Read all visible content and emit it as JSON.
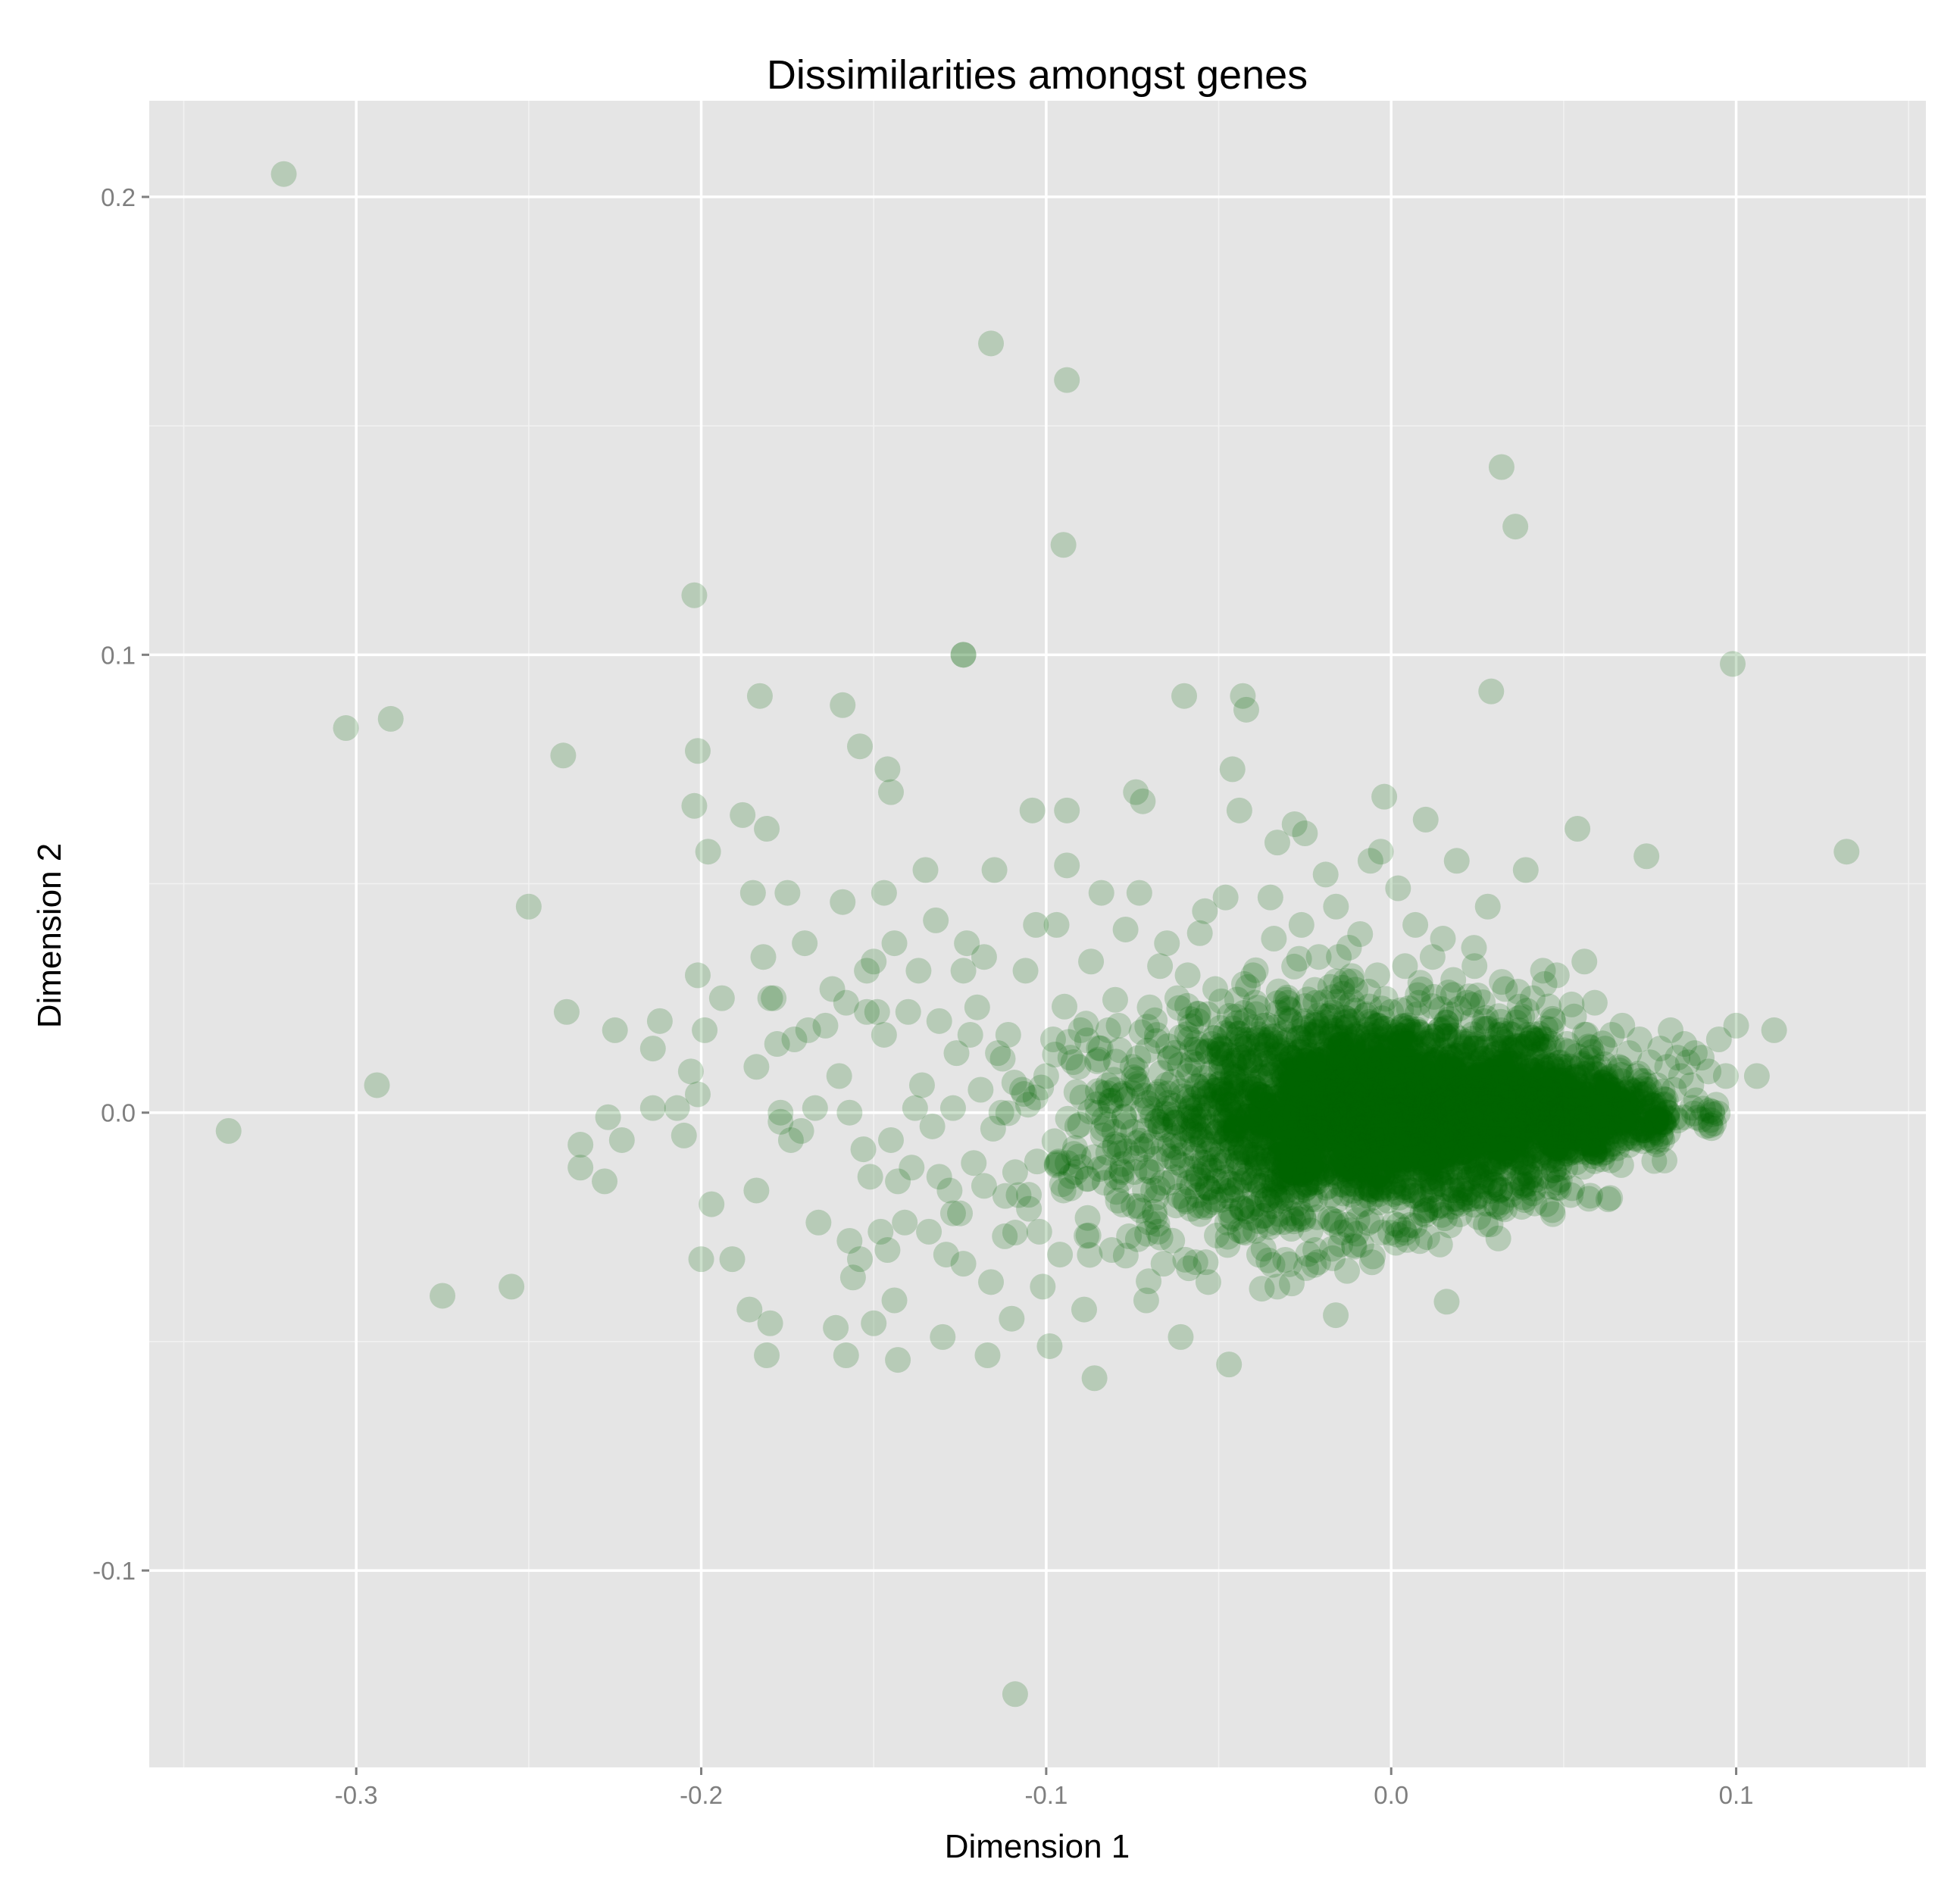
{
  "chart_data": {
    "type": "scatter",
    "title": "Dissimilarities amongst genes",
    "xlabel": "Dimension 1",
    "ylabel": "Dimension 2",
    "xlim": [
      -0.36,
      0.155
    ],
    "ylim": [
      -0.143,
      0.221
    ],
    "x_ticks": [
      -0.3,
      -0.2,
      -0.1,
      0.0,
      0.1
    ],
    "x_tick_labels": [
      "-0.3",
      "-0.2",
      "-0.1",
      "0.0",
      "0.1"
    ],
    "y_ticks": [
      -0.1,
      0.0,
      0.1,
      0.2
    ],
    "y_tick_labels": [
      "-0.1",
      "0.0",
      "0.1",
      "0.2"
    ],
    "grid": true,
    "point_color": "#006400",
    "point_alpha": 0.2,
    "panel_background": "#e5e5e5",
    "points": [
      [
        -0.321,
        0.205
      ],
      [
        -0.337,
        -0.004
      ],
      [
        -0.303,
        0.084
      ],
      [
        -0.29,
        0.086
      ],
      [
        -0.294,
        0.006
      ],
      [
        -0.275,
        -0.04
      ],
      [
        -0.255,
        -0.038
      ],
      [
        -0.25,
        0.045
      ],
      [
        -0.24,
        0.078
      ],
      [
        -0.239,
        0.022
      ],
      [
        -0.235,
        -0.007
      ],
      [
        -0.235,
        -0.012
      ],
      [
        -0.228,
        -0.015
      ],
      [
        -0.227,
        -0.001
      ],
      [
        -0.225,
        0.018
      ],
      [
        -0.223,
        -0.006
      ],
      [
        -0.214,
        0.014
      ],
      [
        -0.214,
        0.001
      ],
      [
        -0.212,
        0.02
      ],
      [
        -0.207,
        0.001
      ],
      [
        -0.205,
        -0.005
      ],
      [
        -0.203,
        0.009
      ],
      [
        -0.202,
        0.067
      ],
      [
        -0.201,
        0.079
      ],
      [
        -0.201,
        0.03
      ],
      [
        -0.201,
        0.004
      ],
      [
        -0.202,
        0.113
      ],
      [
        -0.2,
        -0.032
      ],
      [
        -0.199,
        0.018
      ],
      [
        -0.198,
        0.057
      ],
      [
        -0.197,
        -0.02
      ],
      [
        -0.194,
        0.025
      ],
      [
        -0.191,
        -0.032
      ],
      [
        -0.188,
        0.065
      ],
      [
        -0.186,
        -0.043
      ],
      [
        -0.185,
        0.048
      ],
      [
        -0.184,
        0.01
      ],
      [
        -0.184,
        -0.017
      ],
      [
        -0.183,
        0.091
      ],
      [
        -0.182,
        0.034
      ],
      [
        -0.181,
        0.062
      ],
      [
        -0.181,
        -0.053
      ],
      [
        -0.18,
        -0.046
      ],
      [
        -0.18,
        0.025
      ],
      [
        -0.179,
        0.025
      ],
      [
        -0.178,
        0.015
      ],
      [
        -0.177,
        0.0
      ],
      [
        -0.177,
        -0.002
      ],
      [
        -0.175,
        0.048
      ],
      [
        -0.174,
        -0.006
      ],
      [
        -0.173,
        0.016
      ],
      [
        -0.171,
        -0.004
      ],
      [
        -0.17,
        0.037
      ],
      [
        -0.169,
        0.018
      ],
      [
        -0.167,
        0.001
      ],
      [
        -0.166,
        -0.024
      ],
      [
        -0.164,
        0.019
      ],
      [
        -0.162,
        0.027
      ],
      [
        -0.161,
        -0.047
      ],
      [
        -0.16,
        0.008
      ],
      [
        -0.159,
        0.046
      ],
      [
        -0.159,
        0.089
      ],
      [
        -0.158,
        -0.053
      ],
      [
        -0.158,
        0.024
      ],
      [
        -0.157,
        -0.028
      ],
      [
        -0.157,
        0.0
      ],
      [
        -0.156,
        -0.036
      ],
      [
        -0.154,
        0.08
      ],
      [
        -0.154,
        -0.032
      ],
      [
        -0.153,
        -0.008
      ],
      [
        -0.152,
        0.022
      ],
      [
        -0.152,
        0.031
      ],
      [
        -0.151,
        -0.014
      ],
      [
        -0.15,
        -0.046
      ],
      [
        -0.15,
        0.033
      ],
      [
        -0.149,
        0.022
      ],
      [
        -0.148,
        -0.026
      ],
      [
        -0.147,
        0.017
      ],
      [
        -0.147,
        0.048
      ],
      [
        -0.146,
        -0.03
      ],
      [
        -0.146,
        0.075
      ],
      [
        -0.145,
        0.07
      ],
      [
        -0.145,
        -0.006
      ],
      [
        -0.144,
        -0.041
      ],
      [
        -0.144,
        0.037
      ],
      [
        -0.143,
        -0.054
      ],
      [
        -0.143,
        -0.015
      ],
      [
        -0.141,
        -0.024
      ],
      [
        -0.14,
        0.022
      ],
      [
        -0.139,
        -0.012
      ],
      [
        -0.138,
        0.001
      ],
      [
        -0.137,
        0.031
      ],
      [
        -0.136,
        0.006
      ],
      [
        -0.135,
        0.053
      ],
      [
        -0.134,
        -0.026
      ],
      [
        -0.133,
        -0.003
      ],
      [
        -0.132,
        0.042
      ],
      [
        -0.131,
        -0.014
      ],
      [
        -0.131,
        0.02
      ],
      [
        -0.13,
        -0.049
      ],
      [
        -0.129,
        -0.031
      ],
      [
        -0.128,
        -0.017
      ],
      [
        -0.127,
        -0.022
      ],
      [
        -0.127,
        0.001
      ],
      [
        -0.126,
        0.013
      ],
      [
        -0.125,
        -0.022
      ],
      [
        -0.124,
        0.031
      ],
      [
        -0.124,
        -0.033
      ],
      [
        -0.123,
        0.037
      ],
      [
        -0.122,
        0.017
      ],
      [
        -0.121,
        -0.011
      ],
      [
        -0.12,
        0.023
      ],
      [
        -0.119,
        0.005
      ],
      [
        -0.118,
        -0.016
      ],
      [
        -0.118,
        0.034
      ],
      [
        -0.117,
        -0.053
      ],
      [
        -0.116,
        -0.037
      ],
      [
        -0.115,
        0.053
      ],
      [
        -0.114,
        0.013
      ],
      [
        -0.113,
        0.0
      ],
      [
        -0.112,
        -0.027
      ],
      [
        -0.111,
        0.017
      ],
      [
        -0.11,
        -0.045
      ],
      [
        -0.109,
        -0.013
      ],
      [
        -0.108,
        -0.018
      ],
      [
        -0.107,
        0.005
      ],
      [
        -0.106,
        0.031
      ],
      [
        -0.105,
        -0.021
      ],
      [
        -0.104,
        0.066
      ],
      [
        -0.103,
        0.041
      ],
      [
        -0.102,
        -0.026
      ],
      [
        -0.101,
        -0.038
      ],
      [
        -0.1,
        0.008
      ],
      [
        -0.099,
        -0.051
      ],
      [
        -0.098,
        0.016
      ],
      [
        -0.097,
        0.041
      ],
      [
        -0.096,
        -0.031
      ],
      [
        -0.095,
        -0.017
      ],
      [
        -0.094,
        0.066
      ],
      [
        -0.094,
        0.054
      ],
      [
        -0.093,
        0.012
      ],
      [
        -0.092,
        -0.009
      ],
      [
        -0.091,
        -0.003
      ],
      [
        -0.09,
        0.018
      ],
      [
        -0.089,
        -0.043
      ],
      [
        -0.088,
        -0.023
      ],
      [
        -0.087,
        0.033
      ],
      [
        -0.086,
        -0.058
      ],
      [
        -0.085,
        0.0
      ],
      [
        -0.084,
        0.048
      ],
      [
        -0.083,
        -0.012
      ],
      [
        -0.082,
        0.018
      ],
      [
        -0.081,
        -0.03
      ],
      [
        -0.08,
        0.005
      ],
      [
        -0.079,
        0.019
      ],
      [
        -0.078,
        -0.013
      ],
      [
        -0.077,
        0.04
      ],
      [
        -0.076,
        -0.027
      ],
      [
        -0.075,
        0.01
      ],
      [
        -0.074,
        0.07
      ],
      [
        -0.073,
        0.048
      ],
      [
        -0.072,
        0.068
      ],
      [
        -0.071,
        -0.041
      ],
      [
        -0.07,
        0.023
      ],
      [
        -0.069,
        -0.017
      ],
      [
        -0.068,
        0.004
      ],
      [
        -0.067,
        0.032
      ],
      [
        -0.066,
        -0.033
      ],
      [
        -0.065,
        0.037
      ],
      [
        -0.064,
        0.012
      ],
      [
        -0.063,
        -0.01
      ],
      [
        -0.062,
        0.025
      ],
      [
        -0.061,
        -0.049
      ],
      [
        -0.06,
        0.091
      ],
      [
        -0.059,
        0.03
      ],
      [
        -0.058,
        -0.021
      ],
      [
        -0.057,
        0.003
      ],
      [
        -0.056,
        0.02
      ],
      [
        -0.055,
        -0.006
      ],
      [
        -0.054,
        0.044
      ],
      [
        -0.053,
        -0.037
      ],
      [
        -0.052,
        0.015
      ],
      [
        -0.051,
        0.027
      ],
      [
        -0.05,
        -0.015
      ],
      [
        -0.049,
        0.005
      ],
      [
        -0.048,
        0.047
      ],
      [
        -0.047,
        -0.055
      ],
      [
        -0.046,
        0.075
      ],
      [
        -0.045,
        0.021
      ],
      [
        -0.044,
        0.066
      ],
      [
        -0.043,
        0.091
      ],
      [
        -0.043,
        -0.026
      ],
      [
        -0.042,
        0.088
      ],
      [
        -0.041,
        0.011
      ],
      [
        -0.04,
        0.03
      ],
      [
        -0.039,
        -0.01
      ],
      [
        -0.038,
        0.004
      ],
      [
        -0.037,
        0.019
      ],
      [
        -0.036,
        -0.019
      ],
      [
        -0.035,
        0.047
      ],
      [
        -0.034,
        0.038
      ],
      [
        -0.033,
        -0.038
      ],
      [
        -0.033,
        0.059
      ],
      [
        -0.032,
        0.01
      ],
      [
        -0.031,
        -0.003
      ],
      [
        -0.03,
        0.024
      ],
      [
        -0.029,
        -0.022
      ],
      [
        -0.028,
        0.063
      ],
      [
        -0.027,
        0.006
      ],
      [
        -0.026,
        0.041
      ],
      [
        -0.025,
        0.061
      ],
      [
        -0.024,
        -0.011
      ],
      [
        -0.023,
        0.017
      ],
      [
        -0.022,
        -0.03
      ],
      [
        -0.021,
        0.034
      ],
      [
        -0.02,
        0.001
      ],
      [
        -0.019,
        0.052
      ],
      [
        -0.018,
        -0.016
      ],
      [
        -0.017,
        0.013
      ],
      [
        -0.016,
        0.045
      ],
      [
        -0.015,
        -0.005
      ],
      [
        -0.014,
        0.026
      ],
      [
        -0.013,
        0.011
      ],
      [
        -0.012,
        -0.012
      ],
      [
        -0.011,
        0.02
      ],
      [
        -0.01,
        0.004
      ],
      [
        -0.009,
        0.039
      ],
      [
        -0.008,
        -0.02
      ],
      [
        -0.007,
        0.016
      ],
      [
        -0.006,
        0.055
      ],
      [
        -0.005,
        -0.006
      ],
      [
        -0.004,
        0.03
      ],
      [
        -0.003,
        0.057
      ],
      [
        -0.002,
        -0.01
      ],
      [
        -0.002,
        0.069
      ],
      [
        -0.001,
        0.008
      ],
      [
        0.0,
        0.022
      ],
      [
        0.001,
        -0.015
      ],
      [
        0.002,
        0.049
      ],
      [
        0.003,
        0.003
      ],
      [
        0.004,
        0.032
      ],
      [
        0.005,
        0.015
      ],
      [
        0.006,
        -0.008
      ],
      [
        0.007,
        0.041
      ],
      [
        0.008,
        0.024
      ],
      [
        0.009,
        -0.022
      ],
      [
        0.01,
        0.064
      ],
      [
        0.011,
        0.01
      ],
      [
        0.012,
        0.034
      ],
      [
        0.013,
        -0.003
      ],
      [
        0.014,
        0.018
      ],
      [
        0.015,
        0.038
      ],
      [
        0.016,
        -0.013
      ],
      [
        0.017,
        0.006
      ],
      [
        0.018,
        0.029
      ],
      [
        0.019,
        0.055
      ],
      [
        0.02,
        -0.019
      ],
      [
        0.021,
        0.014
      ],
      [
        0.022,
        0.024
      ],
      [
        0.023,
        -0.005
      ],
      [
        0.024,
        0.036
      ],
      [
        0.025,
        0.008
      ],
      [
        0.026,
        -0.014
      ],
      [
        0.027,
        0.02
      ],
      [
        0.028,
        0.045
      ],
      [
        0.029,
        0.092
      ],
      [
        0.03,
        -0.003
      ],
      [
        0.031,
        0.013
      ],
      [
        0.032,
        0.141
      ],
      [
        0.033,
        0.027
      ],
      [
        0.034,
        -0.009
      ],
      [
        0.035,
        0.005
      ],
      [
        0.036,
        0.128
      ],
      [
        0.037,
        0.018
      ],
      [
        0.038,
        -0.016
      ],
      [
        0.039,
        0.053
      ],
      [
        0.04,
        0.009
      ],
      [
        0.041,
        0.025
      ],
      [
        0.042,
        -0.006
      ],
      [
        0.043,
        0.014
      ],
      [
        0.044,
        0.031
      ],
      [
        0.045,
        -0.02
      ],
      [
        0.046,
        0.004
      ],
      [
        0.047,
        0.02
      ],
      [
        0.048,
        0.03
      ],
      [
        0.049,
        -0.01
      ],
      [
        0.05,
        0.008
      ],
      [
        0.051,
        0.015
      ],
      [
        0.052,
        -0.002
      ],
      [
        0.053,
        0.021
      ],
      [
        0.054,
        0.062
      ],
      [
        0.055,
        0.005
      ],
      [
        0.056,
        0.033
      ],
      [
        0.057,
        -0.007
      ],
      [
        0.058,
        0.012
      ],
      [
        0.059,
        0.024
      ],
      [
        0.06,
        0.002
      ],
      [
        0.061,
        -0.009
      ],
      [
        0.062,
        0.014
      ],
      [
        0.063,
        0.006
      ],
      [
        0.064,
        0.017
      ],
      [
        0.065,
        -0.004
      ],
      [
        0.066,
        0.01
      ],
      [
        0.067,
        0.019
      ],
      [
        0.068,
        0.002
      ],
      [
        0.069,
        0.013
      ],
      [
        0.07,
        -0.003
      ],
      [
        0.071,
        0.008
      ],
      [
        0.072,
        0.016
      ],
      [
        0.073,
        0.004
      ],
      [
        0.074,
        0.056
      ],
      [
        0.075,
        0.011
      ],
      [
        0.076,
        -0.002
      ],
      [
        0.077,
        0.006
      ],
      [
        0.078,
        0.014
      ],
      [
        0.079,
        0.003
      ],
      [
        0.08,
        0.01
      ],
      [
        0.081,
        0.018
      ],
      [
        0.082,
        0.005
      ],
      [
        0.083,
        0.012
      ],
      [
        0.084,
        0.008
      ],
      [
        0.085,
        0.015
      ],
      [
        0.086,
        0.011
      ],
      [
        0.087,
        0.006
      ],
      [
        0.088,
        0.013
      ],
      [
        0.09,
        0.012
      ],
      [
        0.092,
        0.009
      ],
      [
        0.095,
        0.016
      ],
      [
        0.097,
        0.008
      ],
      [
        0.099,
        0.098
      ],
      [
        0.1,
        0.019
      ],
      [
        0.106,
        0.008
      ],
      [
        0.111,
        0.018
      ],
      [
        0.132,
        0.057
      ],
      [
        -0.124,
        0.1
      ],
      [
        -0.124,
        0.1
      ],
      [
        -0.116,
        0.168
      ],
      [
        -0.094,
        0.16
      ],
      [
        -0.095,
        0.124
      ],
      [
        -0.109,
        -0.127
      ]
    ],
    "dense_cluster": {
      "core": [
        {
          "cx": 0.0,
          "cy": 0.0,
          "sx": 0.028,
          "sy": 0.011,
          "n": 2200
        },
        {
          "cx": 0.045,
          "cy": 0.0,
          "sx": 0.02,
          "sy": 0.008,
          "n": 800
        },
        {
          "cx": -0.03,
          "cy": -0.002,
          "sx": 0.018,
          "sy": 0.013,
          "n": 500
        },
        {
          "cx": -0.07,
          "cy": -0.005,
          "sx": 0.02,
          "sy": 0.012,
          "n": 160
        }
      ]
    }
  }
}
